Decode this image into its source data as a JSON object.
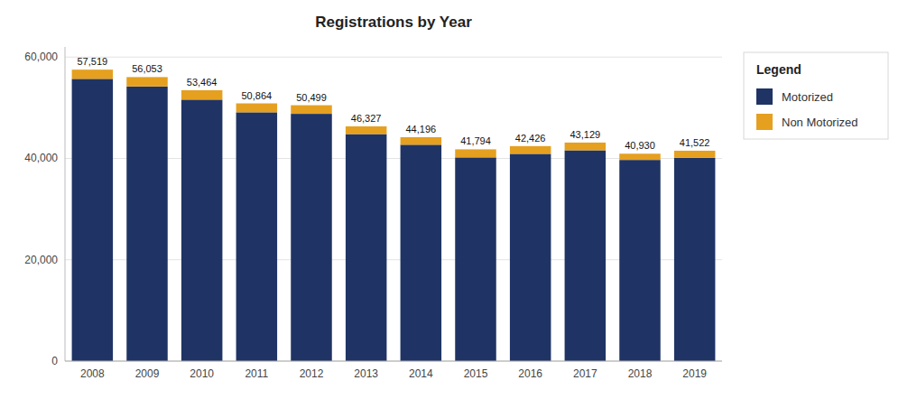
{
  "chart_data": {
    "type": "bar",
    "stacked": true,
    "title": "Registrations by Year",
    "categories": [
      "2008",
      "2009",
      "2010",
      "2011",
      "2012",
      "2013",
      "2014",
      "2015",
      "2016",
      "2017",
      "2018",
      "2019"
    ],
    "series": [
      {
        "name": "Motorized",
        "color": "#1f3464",
        "values": [
          55700,
          54200,
          51600,
          49100,
          48800,
          44800,
          42700,
          40200,
          40900,
          41600,
          39700,
          40100
        ]
      },
      {
        "name": "Non Motorized",
        "color": "#e5a020",
        "values": [
          1819,
          1853,
          1864,
          1764,
          1699,
          1527,
          1496,
          1594,
          1526,
          1529,
          1230,
          1422
        ]
      }
    ],
    "totals": [
      57519,
      56053,
      53464,
      50864,
      50499,
      46327,
      44196,
      41794,
      42426,
      43129,
      40930,
      41522
    ],
    "total_labels": [
      "57,519",
      "56,053",
      "53,464",
      "50,864",
      "50,499",
      "46,327",
      "44,196",
      "41,794",
      "42,426",
      "43,129",
      "40,930",
      "41,522"
    ],
    "ylim": [
      0,
      62000
    ],
    "yticks": [
      0,
      {
        "value": 20000,
        "label": "20,000"
      },
      {
        "value": 40000,
        "label": "40,000"
      },
      {
        "value": 60000,
        "label": "60,000"
      }
    ],
    "grid": true,
    "legend": "right",
    "legend_title": "Legend"
  }
}
